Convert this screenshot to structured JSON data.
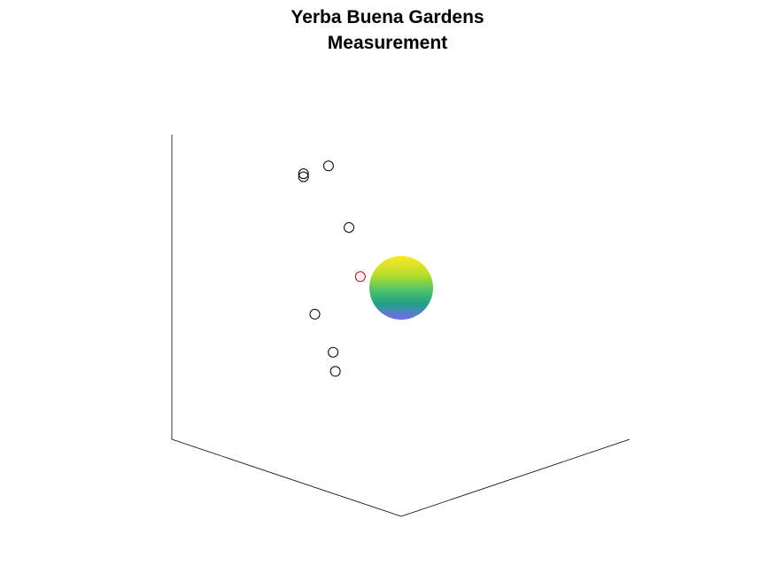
{
  "chart_data": {
    "type": "scatter",
    "title_lines": [
      "Yerba Buena Gardens",
      "Measurement"
    ],
    "view": "3d",
    "grid": false,
    "axis_labels": {
      "x": "",
      "y": "",
      "z": ""
    },
    "points": [
      {
        "x": -2.9,
        "y": 0.3,
        "z": 3.2,
        "color": "#000000"
      },
      {
        "x": -4.4,
        "y": -0.1,
        "z": 2.5,
        "color": "#000000"
      },
      {
        "x": -4.2,
        "y": 0.1,
        "z": 2.5,
        "color": "#000000"
      },
      {
        "x": -0.3,
        "y": 2.0,
        "z": 2.3,
        "color": "#000000"
      },
      {
        "x": -0.8,
        "y": 1.0,
        "z": 0.4,
        "color": "#cc0000"
      },
      {
        "x": -3.3,
        "y": 0.5,
        "z": -1.5,
        "color": "#000000"
      },
      {
        "x": -2.5,
        "y": 0.5,
        "z": -2.5,
        "color": "#000000"
      },
      {
        "x": -1.2,
        "y": 1.7,
        "z": -2.5,
        "color": "#000000"
      }
    ],
    "sphere": {
      "center": [
        0,
        0,
        0
      ],
      "radius": 1,
      "colormap": [
        "#fde725",
        "#4ac16d",
        "#1fa187",
        "#365c8d",
        "#7b68ee"
      ]
    }
  }
}
